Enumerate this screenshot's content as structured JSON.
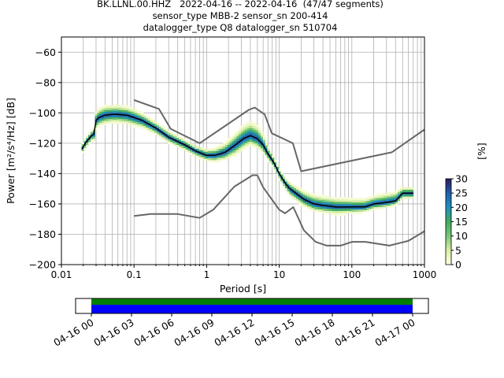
{
  "title": {
    "line1": "BK.LLNL.00.HHZ   2022-04-16 -- 2022-04-16  (47/47 segments)",
    "line2": "sensor_type MBB-2 sensor_sn 200-414",
    "line3": "datalogger_type Q8 datalogger_sn 510704"
  },
  "colorbar": {
    "label": "[%]",
    "ticks": [
      "0",
      "5",
      "10",
      "15",
      "20",
      "25",
      "30"
    ],
    "range": [
      0,
      30
    ],
    "colormap": [
      "#ffffe5",
      "#d9f0a3",
      "#78c679",
      "#41ab5d",
      "#1d91c0",
      "#225ea8",
      "#2c1a5e"
    ]
  },
  "timeline": {
    "tick_labels": [
      "04-16 00",
      "04-16 03",
      "04-16 06",
      "04-16 09",
      "04-16 12",
      "04-16 15",
      "04-16 18",
      "04-16 21",
      "04-17 00"
    ],
    "span_hours": [
      0,
      24
    ],
    "data_coverage_color": "#008000",
    "gaps_color": "#0000ff"
  },
  "chart_data": {
    "type": "heatmap",
    "xlabel": "Period [s]",
    "ylabel": "Power [m²/s⁴/Hz] [dB]",
    "xscale": "log",
    "xlim": [
      0.01,
      1000
    ],
    "ylim": [
      -200,
      -50
    ],
    "grid": true,
    "x_tick_labels": [
      "0.01",
      "0.1",
      "1",
      "10",
      "100",
      "1000"
    ],
    "y_tick_labels": [
      "−200",
      "−180",
      "−160",
      "−140",
      "−120",
      "−100",
      "−80",
      "−60"
    ],
    "y_ticks": [
      -200,
      -180,
      -160,
      -140,
      -120,
      -100,
      -80,
      -60
    ],
    "mode_curve": {
      "color": "#000000",
      "x": [
        0.019,
        0.022,
        0.026,
        0.028,
        0.03,
        0.033,
        0.04,
        0.05,
        0.06,
        0.08,
        0.1,
        0.13,
        0.2,
        0.3,
        0.5,
        0.7,
        1.0,
        1.3,
        1.8,
        2.5,
        3.2,
        4.0,
        5.0,
        6.0,
        7.0,
        8.5,
        10,
        12,
        14,
        17,
        22,
        30,
        40,
        60,
        100,
        150,
        200,
        300,
        400,
        500,
        700
      ],
      "y": [
        -124,
        -119,
        -115,
        -114,
        -105,
        -103,
        -101.5,
        -101,
        -101,
        -101.5,
        -103,
        -105,
        -110,
        -116,
        -121,
        -125,
        -128,
        -128,
        -126,
        -121,
        -117,
        -115,
        -117,
        -121,
        -127,
        -133,
        -140,
        -146,
        -150,
        -153,
        -157,
        -160,
        -161,
        -162,
        -162,
        -162,
        -160,
        -159,
        -158,
        -153,
        -153
      ]
    },
    "nlnm": {
      "color": "#666666",
      "x": [
        0.1,
        0.17,
        0.4,
        0.8,
        1.24,
        2.4,
        4.3,
        5.0,
        6.0,
        10,
        12,
        15.6,
        21.9,
        31.6,
        45,
        70,
        101,
        154,
        328,
        600,
        1000
      ],
      "y": [
        -168,
        -166.7,
        -166.7,
        -169.2,
        -163.7,
        -148.6,
        -141.1,
        -141.1,
        -149,
        -163.8,
        -166.2,
        -162.1,
        -177.5,
        -185,
        -187.5,
        -187.5,
        -185,
        -185,
        -187.5,
        -184.4,
        -178
      ]
    },
    "nhnm": {
      "color": "#666666",
      "x": [
        0.1,
        0.22,
        0.32,
        0.8,
        3.8,
        4.6,
        6.3,
        7.9,
        15.4,
        20,
        354.8,
        1000
      ],
      "y": [
        -91.5,
        -97.4,
        -110.5,
        -120,
        -98,
        -96.5,
        -101,
        -113.5,
        -120,
        -138.5,
        -126,
        -111
      ]
    },
    "psd_density_bands": {
      "description": "probabilistic PSD histogram spread around the mode curve",
      "x": [
        0.019,
        0.022,
        0.026,
        0.028,
        0.03,
        0.033,
        0.04,
        0.05,
        0.06,
        0.08,
        0.1,
        0.13,
        0.2,
        0.3,
        0.5,
        0.7,
        1.0,
        1.3,
        1.8,
        2.5,
        3.2,
        4.0,
        5.0,
        6.0,
        7.0,
        8.5,
        10,
        12,
        14,
        17,
        22,
        30,
        40,
        60,
        100,
        150,
        200,
        300,
        400,
        500,
        700
      ],
      "upper": [
        -120,
        -114,
        -110,
        -108,
        -96,
        -94,
        -92,
        -92,
        -92,
        -93,
        -95,
        -98,
        -104,
        -110,
        -116,
        -120,
        -122,
        -121,
        -117,
        -110,
        -104,
        -101,
        -104,
        -111,
        -120,
        -128,
        -136,
        -141,
        -144,
        -146,
        -149,
        -151,
        -152,
        -153,
        -154,
        -154,
        -152,
        -150,
        -149,
        -147,
        -147
      ],
      "lower": [
        -128,
        -124,
        -120,
        -120,
        -113,
        -111,
        -110,
        -109,
        -109,
        -110,
        -111,
        -112,
        -116,
        -121,
        -126,
        -130,
        -133,
        -134,
        -133,
        -131,
        -127,
        -124,
        -126,
        -129,
        -133,
        -138,
        -145,
        -152,
        -157,
        -160,
        -164,
        -167,
        -168,
        -169,
        -168,
        -167,
        -165,
        -164,
        -162,
        -158,
        -158
      ]
    }
  }
}
